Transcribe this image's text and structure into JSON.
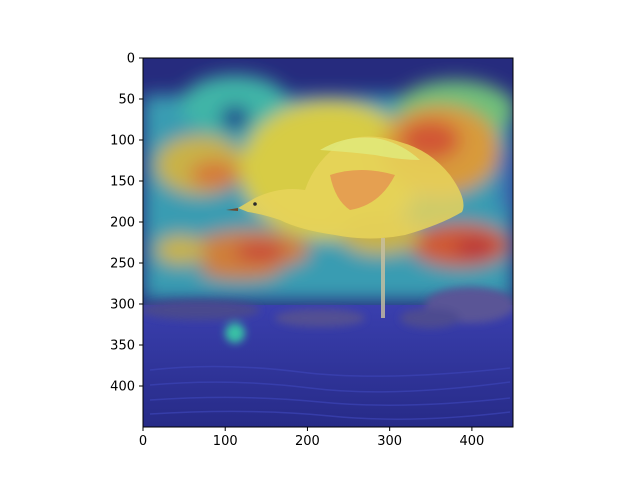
{
  "image": {
    "description_icon": "heatmap-overlay-bird-image",
    "colormap": "jet",
    "xlim": [
      0,
      450
    ],
    "ylim": [
      450,
      0
    ],
    "x_ticks": [
      0,
      100,
      200,
      300,
      400
    ],
    "y_ticks": [
      0,
      50,
      100,
      150,
      200,
      250,
      300,
      350,
      400
    ]
  },
  "axes": {
    "x_tick_labels": [
      "0",
      "100",
      "200",
      "300",
      "400"
    ],
    "y_tick_labels": [
      "0",
      "50",
      "100",
      "150",
      "200",
      "250",
      "300",
      "350",
      "400"
    ]
  }
}
